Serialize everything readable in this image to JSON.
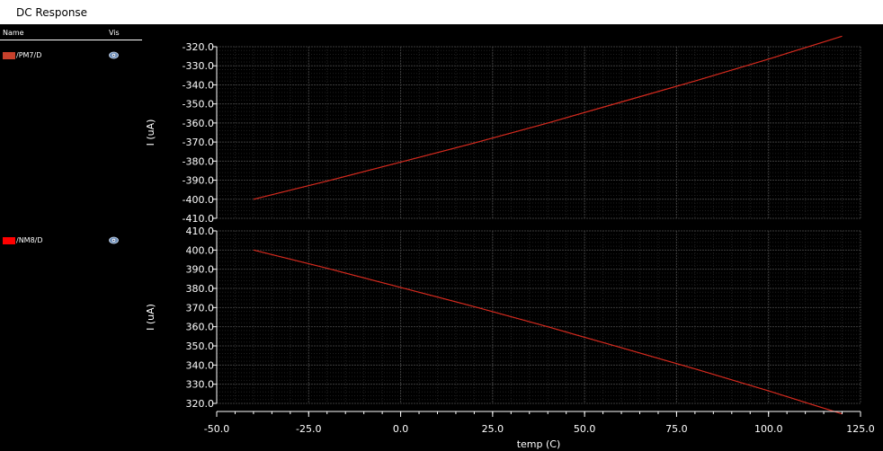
{
  "window": {
    "title": "DC Response"
  },
  "legend": {
    "name_header": "Name",
    "vis_header": "Vis",
    "items": [
      {
        "label": "/PM7/D",
        "color": "#c8412c"
      },
      {
        "label": "/NM8/D",
        "color": "#ff0000"
      }
    ]
  },
  "colors": {
    "background": "#000000",
    "grid": "#3a3a3a",
    "axis": "#ffffff",
    "trace": "#d62a1e"
  },
  "chart_data": [
    {
      "type": "line",
      "grid": true,
      "xlabel": "temp (C)",
      "ylabel": "I (uA)",
      "xlim": [
        -50,
        125
      ],
      "ylim": [
        -410,
        -320
      ],
      "xticks": [
        -50,
        -25,
        0,
        25,
        50,
        75,
        100,
        125
      ],
      "xtick_labels": [
        "-50.0",
        "-25.0",
        "0.0",
        "25.0",
        "50.0",
        "75.0",
        "100.0",
        "125.0"
      ],
      "yticks": [
        -320,
        -330,
        -340,
        -350,
        -360,
        -370,
        -380,
        -390,
        -400,
        -410
      ],
      "ytick_labels": [
        "-320.0",
        "-330.0",
        "-340.0",
        "-350.0",
        "-360.0",
        "-370.0",
        "-380.0",
        "-390.0",
        "-400.0",
        "-410.0"
      ],
      "series": [
        {
          "name": "/PM7/D",
          "x": [
            -40,
            -20,
            0,
            20,
            40,
            60,
            80,
            100,
            120
          ],
          "y": [
            -400,
            -390.5,
            -380.5,
            -370.5,
            -360,
            -349,
            -338,
            -326.5,
            -314.5
          ]
        }
      ]
    },
    {
      "type": "line",
      "grid": true,
      "xlabel": "temp (C)",
      "ylabel": "I (uA)",
      "xlim": [
        -50,
        125
      ],
      "ylim": [
        320,
        410
      ],
      "xticks": [
        -50,
        -25,
        0,
        25,
        50,
        75,
        100,
        125
      ],
      "xtick_labels": [
        "-50.0",
        "-25.0",
        "0.0",
        "25.0",
        "50.0",
        "75.0",
        "100.0",
        "125.0"
      ],
      "yticks": [
        410,
        400,
        390,
        380,
        370,
        360,
        350,
        340,
        330,
        320
      ],
      "ytick_labels": [
        "410.0",
        "400.0",
        "390.0",
        "380.0",
        "370.0",
        "360.0",
        "350.0",
        "340.0",
        "330.0",
        "320.0"
      ],
      "series": [
        {
          "name": "/NM8/D",
          "x": [
            -40,
            -20,
            0,
            20,
            40,
            60,
            80,
            100,
            120
          ],
          "y": [
            400,
            390.5,
            380.5,
            370.5,
            360,
            349,
            338,
            326.5,
            314.5
          ]
        }
      ]
    }
  ]
}
